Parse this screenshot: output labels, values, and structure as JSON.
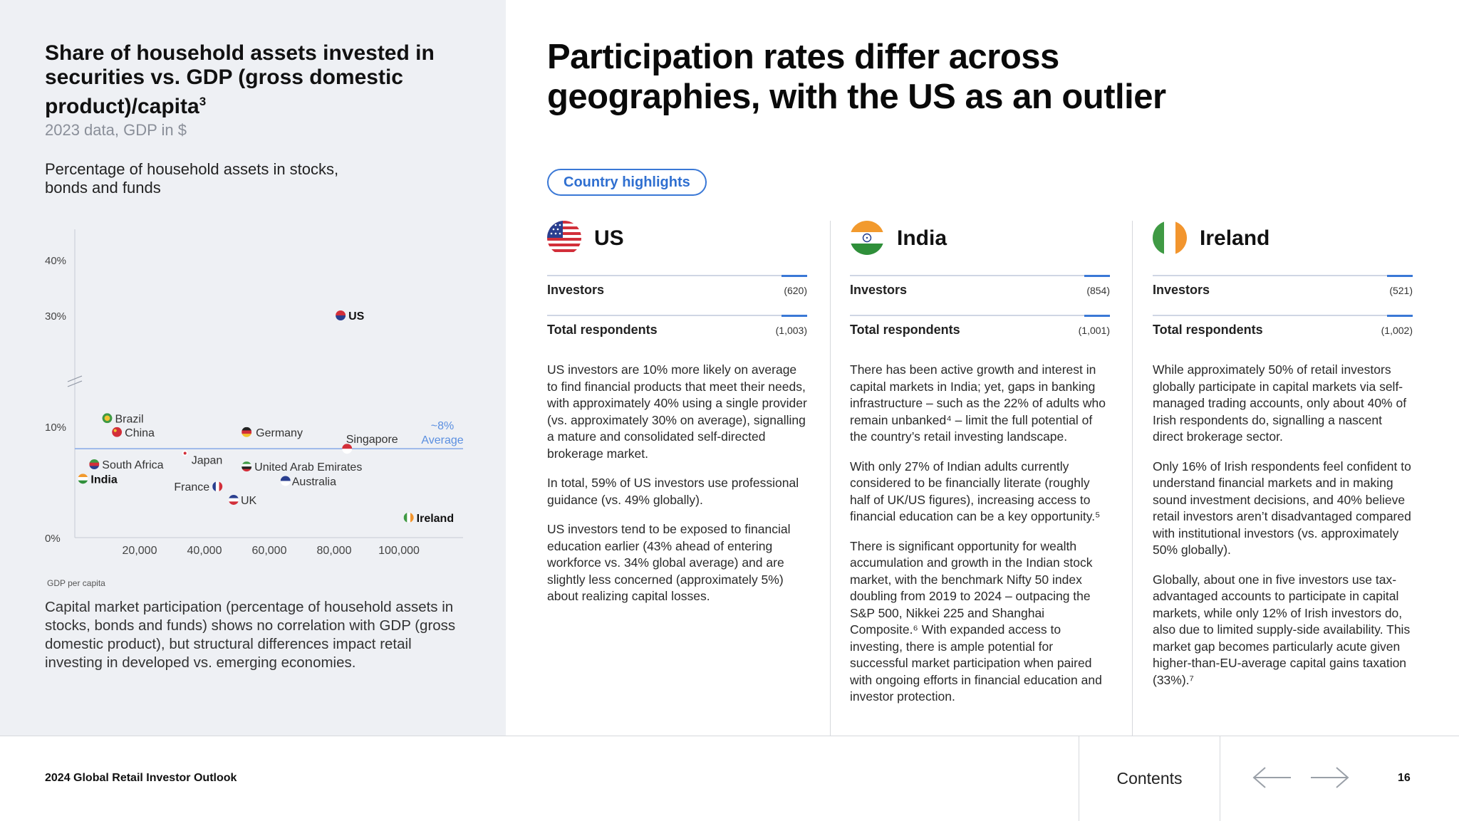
{
  "colors": {
    "accent": "#3a78d6",
    "left_panel_bg": "#eef0f4",
    "average_line": "#8eaee8"
  },
  "chart_title": "Share of household assets invested in securities vs. GDP (gross domestic product)/capita",
  "chart_title_footnote": "3",
  "chart_subtitle": "2023 data, GDP in $",
  "chart_measure": "Percentage of household assets in stocks, bonds and funds",
  "chart_data": {
    "type": "scatter",
    "x_axis_label": "GDP per capita",
    "x_ticks": [
      20000,
      40000,
      60000,
      80000,
      100000
    ],
    "x_tick_labels": [
      "20,000",
      "40,000",
      "60,000",
      "80,000",
      "100,000"
    ],
    "y_ticks": [
      0,
      10,
      30,
      40
    ],
    "y_tick_labels": [
      "0%",
      "10%",
      "30%",
      "40%"
    ],
    "y_axis_break": "between 10% and 30%",
    "average": {
      "value": 8,
      "label_line1": "~8%",
      "label_line2": "Average"
    },
    "points": [
      {
        "label": "US",
        "x": 82000,
        "y": 30,
        "bold": true,
        "flag": "us-flag-icon"
      },
      {
        "label": "Brazil",
        "x": 10000,
        "y": 11.5,
        "flag": "brazil-flag-icon"
      },
      {
        "label": "China",
        "x": 13000,
        "y": 9.5,
        "flag": "china-flag-icon"
      },
      {
        "label": "Germany",
        "x": 53000,
        "y": 9.5,
        "flag": "germany-flag-icon"
      },
      {
        "label": "Singapore",
        "x": 84000,
        "y": 8,
        "flag": "singapore-flag-icon"
      },
      {
        "label": "Japan",
        "x": 34000,
        "y": 7.6,
        "flag": "japan-flag-icon"
      },
      {
        "label": "South Africa",
        "x": 6000,
        "y": 6.6,
        "flag": "south-africa-flag-icon"
      },
      {
        "label": "India",
        "x": 2500,
        "y": 5.3,
        "bold": true,
        "flag": "india-flag-icon"
      },
      {
        "label": "United Arab Emirates",
        "x": 53000,
        "y": 6.4,
        "flag": "uae-flag-icon"
      },
      {
        "label": "Australia",
        "x": 65000,
        "y": 5.1,
        "flag": "australia-flag-icon"
      },
      {
        "label": "France",
        "x": 44000,
        "y": 4.6,
        "flag": "france-flag-icon"
      },
      {
        "label": "UK",
        "x": 49000,
        "y": 3.4,
        "flag": "uk-flag-icon"
      },
      {
        "label": "Ireland",
        "x": 103000,
        "y": 1.8,
        "bold": true,
        "flag": "ireland-flag-icon"
      }
    ]
  },
  "chart_caption": "Capital market participation (percentage of household assets in stocks, bonds and funds) shows no correlation with GDP (gross domestic product), but structural differences impact retail investing in developed vs. emerging economies.",
  "main_title": "Participation rates differ across geographies, with the US as an outlier",
  "highlights_label": "Country highlights",
  "countries": [
    {
      "name": "US",
      "flag": "us-flag-icon",
      "investors_label": "Investors",
      "investors_value": "(620)",
      "respondents_label": "Total respondents",
      "respondents_value": "(1,003)",
      "paragraphs": [
        "US investors are 10% more likely on average to find financial products that meet their needs, with approximately 40% using a single provider (vs. approximately 30% on average), signalling a mature and consolidated self-directed brokerage market.",
        "In total, 59% of US investors use professional guidance (vs. 49% globally).",
        "US investors tend to be exposed to financial education earlier (43% ahead of entering workforce vs. 34% global average) and are slightly less concerned (approximately 5%) about realizing capital losses."
      ]
    },
    {
      "name": "India",
      "flag": "india-flag-icon",
      "investors_label": "Investors",
      "investors_value": "(854)",
      "respondents_label": "Total respondents",
      "respondents_value": "(1,001)",
      "paragraphs": [
        "There has been active growth and interest in capital markets in India; yet, gaps in banking infrastructure – such as the 22% of adults who remain unbanked⁴ – limit the full potential of the country’s retail investing landscape.",
        "With only 27% of Indian adults currently considered to be financially literate (roughly half of UK/US figures), increasing access to financial education can be a key opportunity.⁵",
        "There is significant opportunity for wealth accumulation and growth in the Indian stock market, with the benchmark Nifty 50 index doubling from 2019 to 2024 – outpacing the S&P 500, Nikkei 225 and Shanghai Composite.⁶ With expanded access to investing, there is ample potential for successful market participation when paired with ongoing efforts in financial education and investor protection."
      ]
    },
    {
      "name": "Ireland",
      "flag": "ireland-flag-icon",
      "investors_label": "Investors",
      "investors_value": "(521)",
      "respondents_label": "Total respondents",
      "respondents_value": "(1,002)",
      "paragraphs": [
        "While approximately 50% of retail investors globally participate in capital markets via self-managed trading accounts, only about 40% of Irish respondents do, signalling a nascent direct brokerage sector.",
        "Only 16% of Irish respondents feel confident to understand financial markets and in making sound investment decisions, and 40% believe retail investors aren’t disadvantaged compared with institutional investors (vs. approximately 50% globally).",
        "Globally, about one in five investors use tax-advantaged accounts to participate in capital markets, while only 12% of Irish investors do, also due to limited supply-side availability. This market gap becomes particularly acute given higher-than-EU-average capital gains taxation (33%).⁷"
      ]
    }
  ],
  "footer": {
    "report_title": "2024 Global Retail Investor Outlook",
    "contents_label": "Contents",
    "page_number": "16"
  }
}
